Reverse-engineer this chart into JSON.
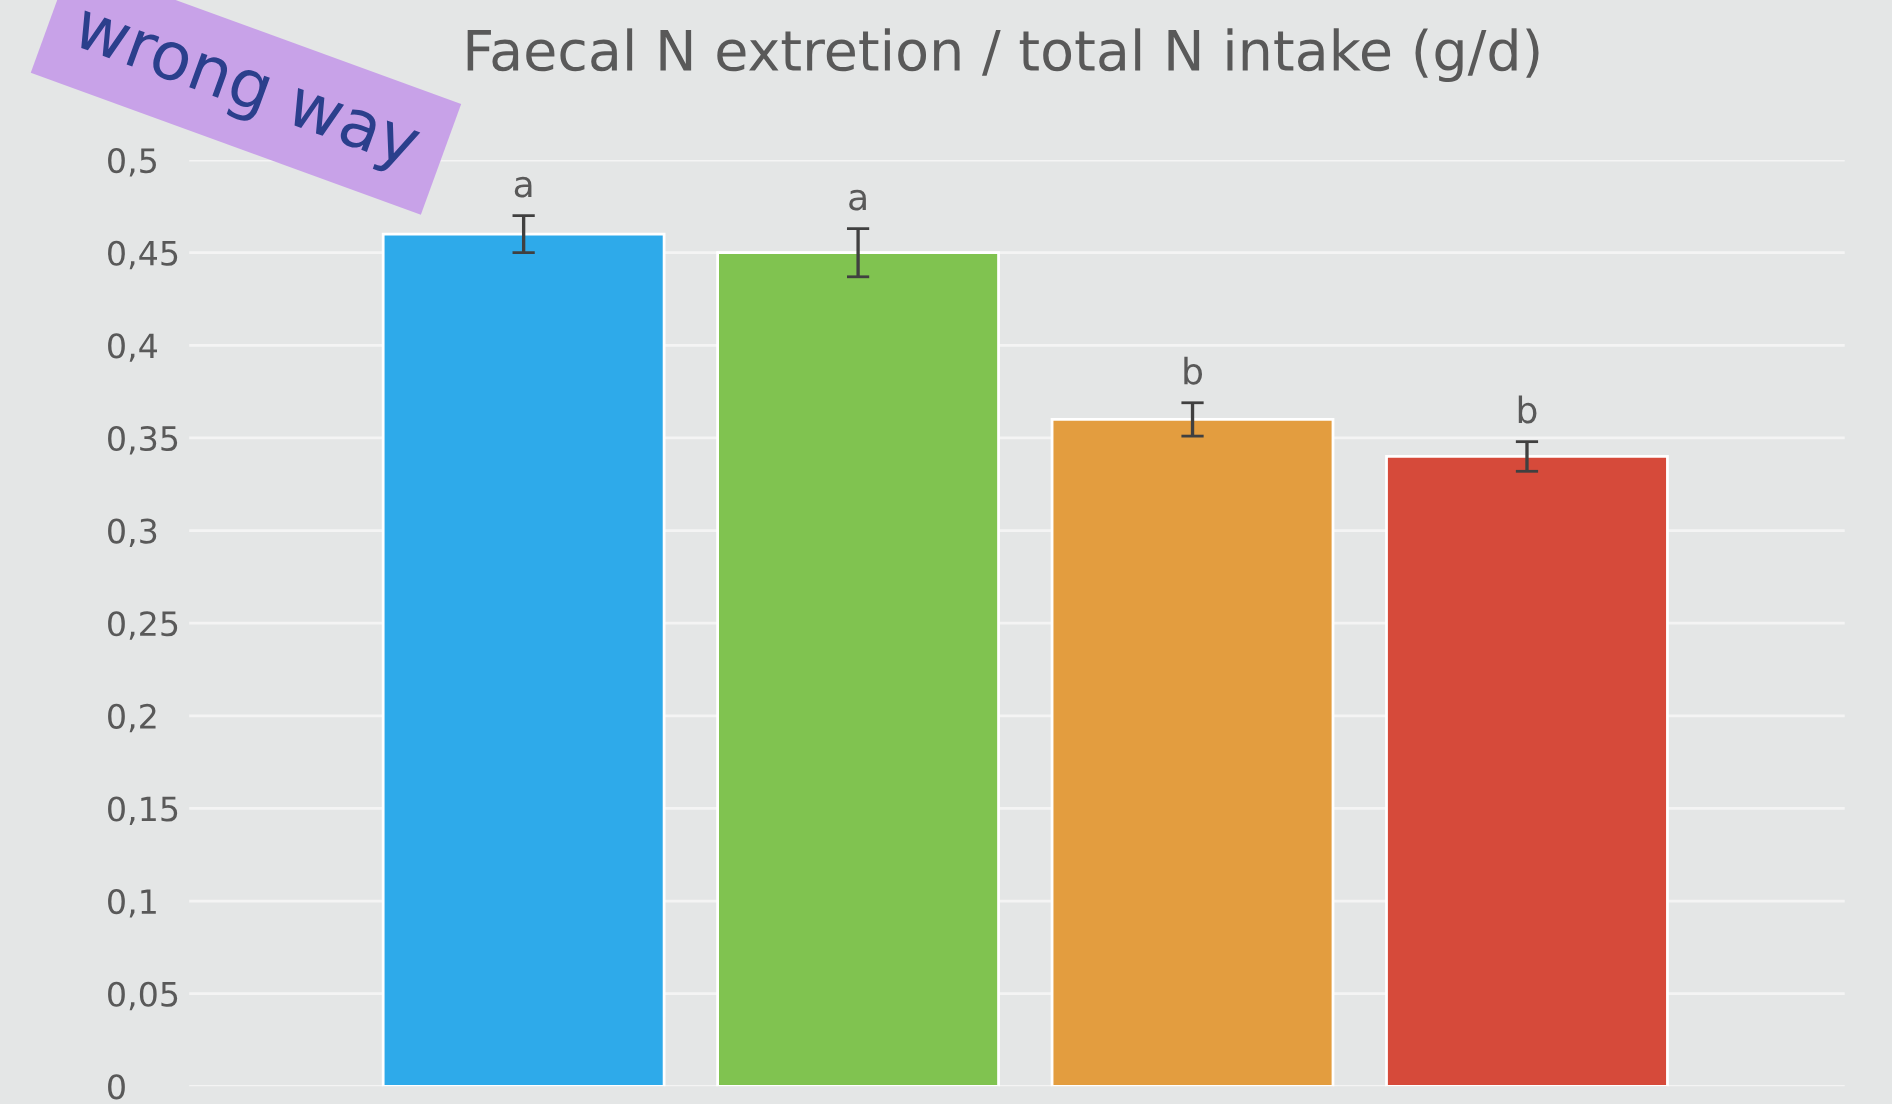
{
  "chart_data": {
    "type": "bar",
    "title": "Faecal N extretion / total N intake (g/d)",
    "categories": [
      null,
      null,
      null,
      null
    ],
    "values": [
      0.46,
      0.45,
      0.36,
      0.34
    ],
    "colors": [
      "#2eaaea",
      "#80c350",
      "#e39d3f",
      "#d64a3a"
    ],
    "errors": [
      0.01,
      0.013,
      0.009,
      0.008
    ],
    "value_labels": [
      "a",
      "a",
      "b",
      "b"
    ],
    "ylim": [
      0,
      0.5
    ],
    "yticks": [
      {
        "value": 0,
        "label": "0"
      },
      {
        "value": 0.05,
        "label": "0,05"
      },
      {
        "value": 0.1,
        "label": "0,1"
      },
      {
        "value": 0.15,
        "label": "0,15"
      },
      {
        "value": 0.2,
        "label": "0,2"
      },
      {
        "value": 0.25,
        "label": "0,25"
      },
      {
        "value": 0.3,
        "label": "0,3"
      },
      {
        "value": 0.35,
        "label": "0,35"
      },
      {
        "value": 0.4,
        "label": "0,4"
      },
      {
        "value": 0.45,
        "label": "0,45"
      },
      {
        "value": 0.5,
        "label": "0,5"
      }
    ],
    "grid": "y",
    "tick_labels": "y",
    "annotations": [
      "wrong way"
    ]
  }
}
